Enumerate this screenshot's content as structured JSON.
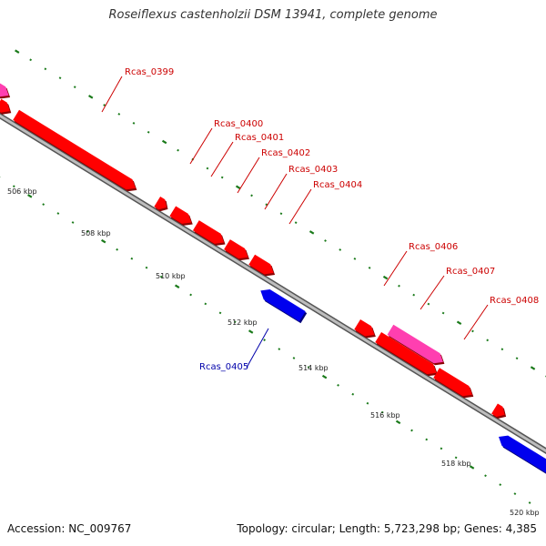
{
  "title": "Roseiflexus castenholzii DSM 13941, complete genome",
  "footer": {
    "accession": "Accession: NC_009767",
    "summary": "Topology: circular; Length: 5,723,298 bp; Genes: 4,385"
  },
  "colors": {
    "forward_gene": "#ff0000",
    "forward_highlight": "#ff3fb0",
    "reverse_gene": "#0000ee",
    "backbone": "#8a8a8a",
    "ticks": "#1a7a1a",
    "forward_label": "#cc0000",
    "reverse_label": "#0000aa"
  },
  "scale_labels": [
    "506 kbp",
    "508 kbp",
    "510 kbp",
    "512 kbp",
    "514 kbp",
    "516 kbp",
    "518 kbp",
    "520 kbp"
  ],
  "gene_labels": [
    {
      "text": "Rcas_0399",
      "strand": "forward"
    },
    {
      "text": "Rcas_0400",
      "strand": "forward"
    },
    {
      "text": "Rcas_0401",
      "strand": "forward"
    },
    {
      "text": "Rcas_0402",
      "strand": "forward"
    },
    {
      "text": "Rcas_0403",
      "strand": "forward"
    },
    {
      "text": "Rcas_0404",
      "strand": "forward"
    },
    {
      "text": "Rcas_0406",
      "strand": "forward"
    },
    {
      "text": "Rcas_0407",
      "strand": "forward"
    },
    {
      "text": "Rcas_0408",
      "strand": "forward"
    },
    {
      "text": "Rcas_0405",
      "strand": "reverse"
    }
  ]
}
